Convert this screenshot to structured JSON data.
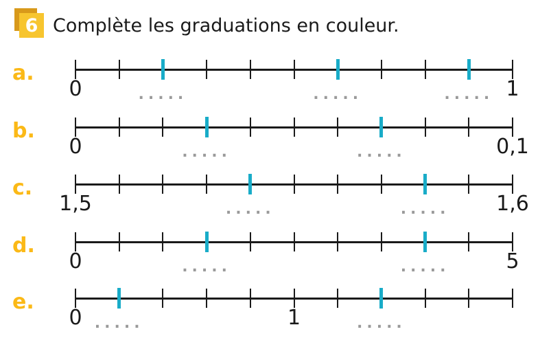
{
  "header": {
    "badge_number": "6",
    "title": "Complète les graduations en couleur."
  },
  "placeholder_dots": ".....",
  "colors": {
    "teal": "#19ACC8",
    "yellow": "#FBB917",
    "badge_front": "#F7C52F",
    "badge_back": "#D8991B",
    "ink": "#1A1A1A",
    "dots": "#9A9A9A"
  },
  "number_lines": [
    {
      "letter": "a.",
      "intervals": 10,
      "teal_ticks": [
        2,
        6,
        9
      ],
      "dotted_ticks": [
        2,
        6,
        9
      ],
      "labels": [
        {
          "tick": 0,
          "text": "0"
        },
        {
          "tick": 10,
          "text": "1"
        }
      ]
    },
    {
      "letter": "b.",
      "intervals": 10,
      "teal_ticks": [
        3,
        7
      ],
      "dotted_ticks": [
        3,
        7
      ],
      "labels": [
        {
          "tick": 0,
          "text": "0"
        },
        {
          "tick": 10,
          "text": "0,1"
        }
      ]
    },
    {
      "letter": "c.",
      "intervals": 10,
      "teal_ticks": [
        4,
        8
      ],
      "dotted_ticks": [
        4,
        8
      ],
      "labels": [
        {
          "tick": 0,
          "text": "1,5"
        },
        {
          "tick": 10,
          "text": "1,6"
        }
      ]
    },
    {
      "letter": "d.",
      "intervals": 10,
      "teal_ticks": [
        3,
        8
      ],
      "dotted_ticks": [
        3,
        8
      ],
      "labels": [
        {
          "tick": 0,
          "text": "0"
        },
        {
          "tick": 10,
          "text": "5"
        }
      ]
    },
    {
      "letter": "e.",
      "intervals": 10,
      "teal_ticks": [
        1,
        7
      ],
      "dotted_ticks": [
        1,
        7
      ],
      "labels": [
        {
          "tick": 0,
          "text": "0"
        },
        {
          "tick": 5,
          "text": "1"
        }
      ]
    }
  ]
}
